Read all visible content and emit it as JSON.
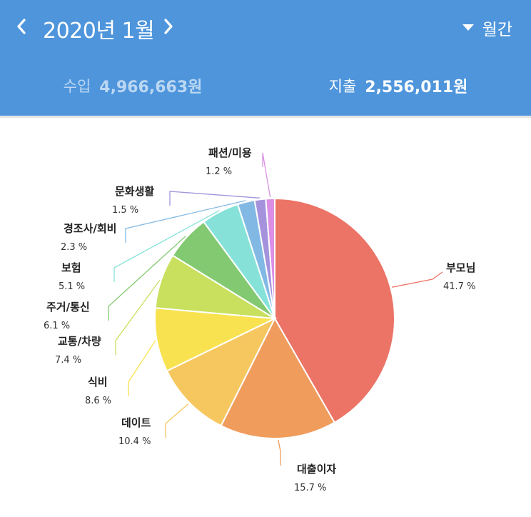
{
  "header": {
    "month_title": "2020년 1월",
    "prev_icon": "chevron-left-icon",
    "next_icon": "chevron-right-icon",
    "period_icon": "caret-down-icon",
    "period_label": "월간",
    "background_color": "#4e95dc"
  },
  "tabs": {
    "income": {
      "label": "수입",
      "amount": "4,966,663원"
    },
    "expense": {
      "label": "지출",
      "amount": "2,556,011원",
      "selected": true
    }
  },
  "chart_data": {
    "type": "pie",
    "slices": [
      {
        "name": "부모님",
        "label": "41.7 %",
        "value": 41.7,
        "color": "#ec7467"
      },
      {
        "name": "대출이자",
        "label": "15.7 %",
        "value": 15.7,
        "color": "#ef9c5c"
      },
      {
        "name": "데이트",
        "label": "10.4 %",
        "value": 10.4,
        "color": "#f6c75f"
      },
      {
        "name": "식비",
        "label": "8.6 %",
        "value": 8.6,
        "color": "#f9e24f"
      },
      {
        "name": "교통/차량",
        "label": "7.4 %",
        "value": 7.4,
        "color": "#c8e05e"
      },
      {
        "name": "주거/통신",
        "label": "6.1 %",
        "value": 6.1,
        "color": "#83c971"
      },
      {
        "name": "보험",
        "label": "5.1 %",
        "value": 5.1,
        "color": "#86e2d9"
      },
      {
        "name": "경조사/회비",
        "label": "2.3 %",
        "value": 2.3,
        "color": "#82b9e4"
      },
      {
        "name": "문화생활",
        "label": "1.5 %",
        "value": 1.5,
        "color": "#a493dc"
      },
      {
        "name": "패션/미용",
        "label": "1.2 %",
        "value": 1.2,
        "color": "#da8fe4"
      }
    ]
  }
}
